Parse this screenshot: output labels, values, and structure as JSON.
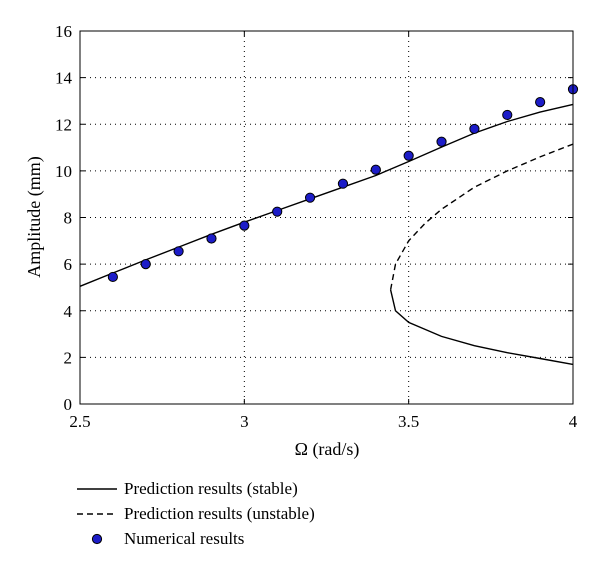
{
  "chart_data": {
    "type": "line",
    "title": "",
    "xlabel": "Ω (rad/s)",
    "ylabel": "Amplitude (mm)",
    "xlim": [
      2.5,
      4
    ],
    "ylim": [
      0,
      16
    ],
    "x_ticks": [
      "2.5",
      "3",
      "3.5",
      "4"
    ],
    "y_ticks": [
      "0",
      "2",
      "4",
      "6",
      "8",
      "10",
      "12",
      "14",
      "16"
    ],
    "grid": "dotted",
    "legend_position": "bottom-outside",
    "series": [
      {
        "name": "Prediction results (stable)",
        "style": "solid",
        "color": "#000000",
        "points": [
          [
            2.5,
            5.05
          ],
          [
            2.6,
            5.62
          ],
          [
            2.7,
            6.18
          ],
          [
            2.8,
            6.73
          ],
          [
            2.9,
            7.28
          ],
          [
            3.0,
            7.8
          ],
          [
            3.1,
            8.3
          ],
          [
            3.2,
            8.8
          ],
          [
            3.3,
            9.3
          ],
          [
            3.4,
            9.8
          ],
          [
            3.5,
            10.4
          ],
          [
            3.6,
            11.02
          ],
          [
            3.7,
            11.62
          ],
          [
            3.8,
            12.12
          ],
          [
            3.9,
            12.52
          ],
          [
            4.0,
            12.85
          ]
        ]
      },
      {
        "name": "Prediction results (unstable)",
        "style": "dashed",
        "color": "#000000",
        "points": [
          [
            3.445,
            4.9
          ],
          [
            3.46,
            6.0
          ],
          [
            3.5,
            7.0
          ],
          [
            3.55,
            7.75
          ],
          [
            3.6,
            8.35
          ],
          [
            3.7,
            9.3
          ],
          [
            3.8,
            10.0
          ],
          [
            3.9,
            10.6
          ],
          [
            4.0,
            11.15
          ]
        ]
      },
      {
        "name": "Prediction results (stable)",
        "style": "solid",
        "color": "#000000",
        "points": [
          [
            3.445,
            4.9
          ],
          [
            3.46,
            4.0
          ],
          [
            3.5,
            3.5
          ],
          [
            3.55,
            3.2
          ],
          [
            3.6,
            2.9
          ],
          [
            3.7,
            2.5
          ],
          [
            3.8,
            2.2
          ],
          [
            3.9,
            1.95
          ],
          [
            4.0,
            1.7
          ]
        ]
      },
      {
        "name": "Numerical results",
        "style": "markers",
        "color": "#1c1cc8",
        "points": [
          [
            2.6,
            5.45
          ],
          [
            2.7,
            6.0
          ],
          [
            2.8,
            6.55
          ],
          [
            2.9,
            7.1
          ],
          [
            3.0,
            7.65
          ],
          [
            3.1,
            8.25
          ],
          [
            3.2,
            8.85
          ],
          [
            3.3,
            9.45
          ],
          [
            3.4,
            10.05
          ],
          [
            3.5,
            10.65
          ],
          [
            3.6,
            11.25
          ],
          [
            3.7,
            11.8
          ],
          [
            3.8,
            12.4
          ],
          [
            3.9,
            12.95
          ],
          [
            4.0,
            13.5
          ]
        ]
      }
    ],
    "legend": [
      {
        "label": "Prediction results (stable)",
        "style": "solid"
      },
      {
        "label": "Prediction results (unstable)",
        "style": "dashed"
      },
      {
        "label": "Numerical results",
        "style": "markers"
      }
    ]
  }
}
